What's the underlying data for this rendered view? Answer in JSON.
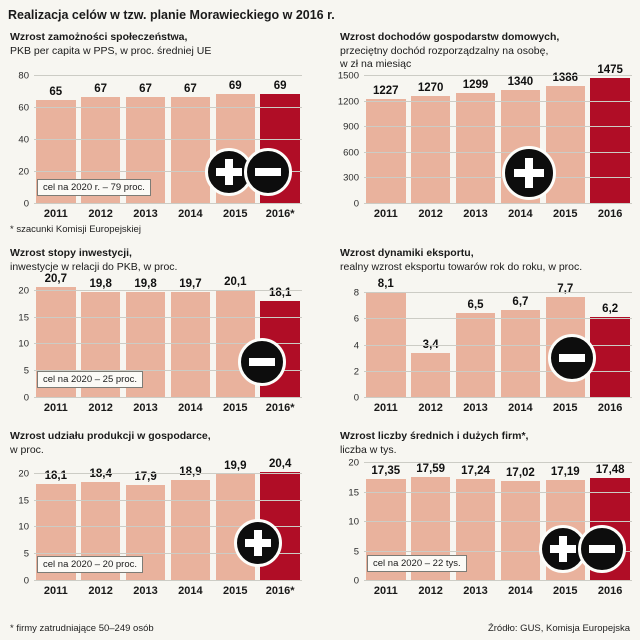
{
  "page": {
    "title": "Realizacja celów w tzw. planie Morawieckiego w 2016 r.",
    "footnote_estimates": "* szacunki Komisji Europejskiej",
    "footnote_firms": "* firmy zatrudniające 50–249 osób",
    "source": "Źródło: GUS, Komisja Europejska"
  },
  "colors": {
    "bar": "#e9b29d",
    "bar_highlight": "#b00d26",
    "icon_background": "#0d0d0d",
    "grid": "#ccccc5"
  },
  "chart_data": [
    {
      "id": "wealth-gdp-per-capita",
      "type": "bar",
      "title_lines": [
        "Wzrost zamożności społeczeństwa,",
        "PKB per capita w PPS, w proc. średniej UE"
      ],
      "categories": [
        "2011",
        "2012",
        "2013",
        "2014",
        "2015",
        "2016*"
      ],
      "values": [
        65,
        67,
        67,
        67,
        69,
        69
      ],
      "value_labels": [
        "65",
        "67",
        "67",
        "67",
        "69",
        "69"
      ],
      "yticks": [
        0,
        20,
        40,
        60,
        80
      ],
      "ylim": [
        0,
        80
      ],
      "scale_max": 80,
      "note": "cel na 2020 r. – 79 proc.",
      "icons": [
        "plus",
        "minus"
      ]
    },
    {
      "id": "household-income",
      "type": "bar",
      "title_lines": [
        "Wzrost dochodów gospodarstw domowych,",
        "przeciętny dochód rozporządzalny na osobę,",
        "w zł na miesiąc"
      ],
      "categories": [
        "2011",
        "2012",
        "2013",
        "2014",
        "2015",
        "2016"
      ],
      "values": [
        1227,
        1270,
        1299,
        1340,
        1386,
        1475
      ],
      "value_labels": [
        "1227",
        "1270",
        "1299",
        "1340",
        "1386",
        "1475"
      ],
      "yticks": [
        0,
        300,
        600,
        900,
        1200,
        1500
      ],
      "ylim": [
        0,
        1500
      ],
      "scale_max": 1500,
      "note": null,
      "icons": [
        "plus"
      ]
    },
    {
      "id": "investment-rate",
      "type": "bar",
      "title_lines": [
        "Wzrost stopy inwestycji,",
        "inwestycje w relacji do PKB, w proc."
      ],
      "categories": [
        "2011",
        "2012",
        "2013",
        "2014",
        "2015",
        "2016*"
      ],
      "values": [
        20.7,
        19.8,
        19.8,
        19.7,
        20.1,
        18.1
      ],
      "value_labels": [
        "20,7",
        "19,8",
        "19,8",
        "19,7",
        "20,1",
        "18,1"
      ],
      "yticks": [
        0,
        5,
        10,
        15,
        20
      ],
      "ylim": [
        0,
        20
      ],
      "scale_max": 22,
      "note": "cel na 2020 – 25 proc.",
      "icons": [
        "minus"
      ]
    },
    {
      "id": "export-dynamics",
      "type": "bar",
      "title_lines": [
        "Wzrost dynamiki eksportu,",
        "realny wzrost eksportu towarów rok do roku, w proc."
      ],
      "categories": [
        "2011",
        "2012",
        "2013",
        "2014",
        "2015",
        "2016"
      ],
      "values": [
        8.1,
        3.4,
        6.5,
        6.7,
        7.7,
        6.2
      ],
      "value_labels": [
        "8,1",
        "3,4",
        "6,5",
        "6,7",
        "7,7",
        "6,2"
      ],
      "yticks": [
        0,
        2,
        4,
        6,
        8
      ],
      "ylim": [
        0,
        8
      ],
      "scale_max": 9,
      "note": null,
      "icons": [
        "minus"
      ]
    },
    {
      "id": "production-share",
      "type": "bar",
      "title_lines": [
        "Wzrost udziału produkcji w gospodarce,",
        "w proc."
      ],
      "categories": [
        "2011",
        "2012",
        "2013",
        "2014",
        "2015",
        "2016*"
      ],
      "values": [
        18.1,
        18.4,
        17.9,
        18.9,
        19.9,
        20.4
      ],
      "value_labels": [
        "18,1",
        "18,4",
        "17,9",
        "18,9",
        "19,9",
        "20,4"
      ],
      "yticks": [
        0,
        5,
        10,
        15,
        20
      ],
      "ylim": [
        0,
        20
      ],
      "scale_max": 22,
      "note": "cel na 2020 – 20 proc.",
      "icons": [
        "plus"
      ]
    },
    {
      "id": "medium-large-firms",
      "type": "bar",
      "title_lines": [
        "Wzrost liczby średnich i dużych firm*,",
        "liczba w tys."
      ],
      "categories": [
        "2011",
        "2012",
        "2013",
        "2014",
        "2015",
        "2016"
      ],
      "values": [
        17.35,
        17.59,
        17.24,
        17.02,
        17.19,
        17.48
      ],
      "value_labels": [
        "17,35",
        "17,59",
        "17,24",
        "17,02",
        "17,19",
        "17,48"
      ],
      "yticks": [
        0,
        5,
        10,
        15,
        20
      ],
      "ylim": [
        0,
        20
      ],
      "scale_max": 20,
      "note": "cel na 2020 – 22 tys.",
      "icons": [
        "plus",
        "minus"
      ]
    }
  ]
}
